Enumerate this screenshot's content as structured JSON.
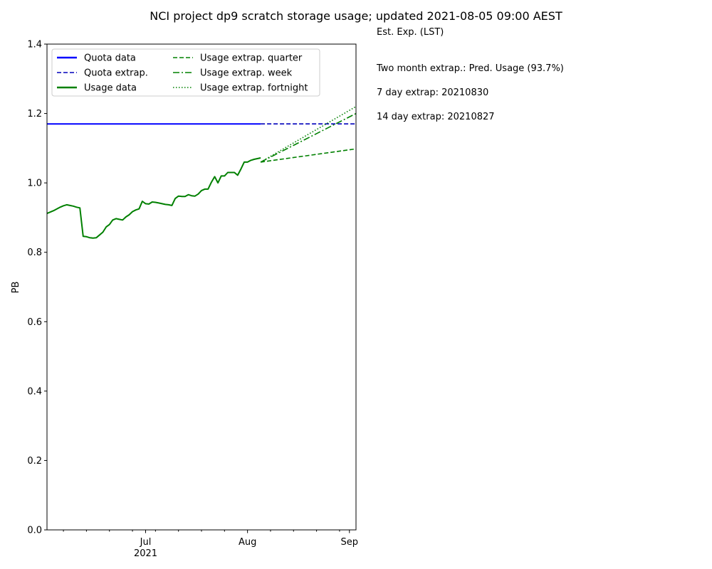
{
  "chart_data": {
    "type": "line",
    "title": "NCI project dp9 scratch storage usage; updated 2021-08-05 09:00 AEST",
    "xlabel": "",
    "ylabel": "PB",
    "ylim": [
      0,
      1.4
    ],
    "yticks": [
      0.0,
      0.2,
      0.4,
      0.6,
      0.8,
      1.0,
      1.2,
      1.4
    ],
    "ytick_labels": [
      "0.0",
      "0.2",
      "0.4",
      "0.6",
      "0.8",
      "1.0",
      "1.2",
      "1.4"
    ],
    "xlim": [
      "2021-06-01",
      "2021-09-03"
    ],
    "xticks": [
      {
        "date": "2021-07-01",
        "label": "Jul",
        "sublabel": "2021"
      },
      {
        "date": "2021-08-01",
        "label": "Aug",
        "sublabel": ""
      },
      {
        "date": "2021-09-01",
        "label": "Sep",
        "sublabel": ""
      }
    ],
    "minor_xticks": [
      "2021-06-06",
      "2021-06-13",
      "2021-06-20",
      "2021-06-27",
      "2021-07-04",
      "2021-07-11",
      "2021-07-18",
      "2021-07-25",
      "2021-08-08",
      "2021-08-15",
      "2021-08-22",
      "2021-08-29"
    ],
    "grid": false,
    "legend_position": "top-left",
    "series": [
      {
        "name": "Quota data",
        "color": "#0000ff",
        "style": "solid",
        "x": [
          "2021-06-01",
          "2021-06-26",
          "2021-06-27",
          "2021-08-05"
        ],
        "y": [
          1.17,
          1.17,
          1.17,
          1.17
        ]
      },
      {
        "name": "Quota extrap.",
        "color": "#0000bb",
        "style": "dashed",
        "x": [
          "2021-08-05",
          "2021-09-03"
        ],
        "y": [
          1.17,
          1.17
        ]
      },
      {
        "name": "Usage data",
        "color": "#008000",
        "style": "solid",
        "x": [
          "2021-06-01",
          "2021-06-03",
          "2021-06-05",
          "2021-06-06",
          "2021-06-07",
          "2021-06-08",
          "2021-06-09",
          "2021-06-10",
          "2021-06-11",
          "2021-06-12",
          "2021-06-13",
          "2021-06-14",
          "2021-06-15",
          "2021-06-16",
          "2021-06-17",
          "2021-06-18",
          "2021-06-19",
          "2021-06-20",
          "2021-06-21",
          "2021-06-22",
          "2021-06-23",
          "2021-06-24",
          "2021-06-25",
          "2021-06-26",
          "2021-06-27",
          "2021-06-28",
          "2021-06-29",
          "2021-06-30",
          "2021-07-01",
          "2021-07-02",
          "2021-07-03",
          "2021-07-04",
          "2021-07-05",
          "2021-07-06",
          "2021-07-07",
          "2021-07-08",
          "2021-07-09",
          "2021-07-10",
          "2021-07-11",
          "2021-07-12",
          "2021-07-13",
          "2021-07-14",
          "2021-07-15",
          "2021-07-16",
          "2021-07-17",
          "2021-07-18",
          "2021-07-19",
          "2021-07-20",
          "2021-07-21",
          "2021-07-22",
          "2021-07-23",
          "2021-07-24",
          "2021-07-25",
          "2021-07-26",
          "2021-07-27",
          "2021-07-28",
          "2021-07-29",
          "2021-07-30",
          "2021-07-31",
          "2021-08-01",
          "2021-08-02",
          "2021-08-03",
          "2021-08-04",
          "2021-08-05"
        ],
        "y": [
          0.912,
          0.92,
          0.93,
          0.934,
          0.937,
          0.935,
          0.933,
          0.93,
          0.928,
          0.846,
          0.845,
          0.842,
          0.841,
          0.842,
          0.85,
          0.858,
          0.873,
          0.88,
          0.893,
          0.897,
          0.895,
          0.893,
          0.902,
          0.908,
          0.917,
          0.922,
          0.925,
          0.947,
          0.94,
          0.939,
          0.945,
          0.944,
          0.942,
          0.94,
          0.938,
          0.937,
          0.935,
          0.955,
          0.962,
          0.961,
          0.961,
          0.966,
          0.963,
          0.962,
          0.968,
          0.978,
          0.982,
          0.982,
          1.002,
          1.018,
          1.0,
          1.02,
          1.02,
          1.03,
          1.03,
          1.03,
          1.022,
          1.04,
          1.06,
          1.06,
          1.065,
          1.068,
          1.07,
          1.072
        ]
      },
      {
        "name": "Usage extrap. quarter",
        "color": "#008000",
        "style": "dashed",
        "x": [
          "2021-08-05",
          "2021-09-03"
        ],
        "y": [
          1.06,
          1.098
        ]
      },
      {
        "name": "Usage extrap. week",
        "color": "#008000",
        "style": "dashdot",
        "x": [
          "2021-08-05",
          "2021-09-03"
        ],
        "y": [
          1.06,
          1.2
        ]
      },
      {
        "name": "Usage extrap. fortnight",
        "color": "#008000",
        "style": "dotted",
        "x": [
          "2021-08-05",
          "2021-09-03"
        ],
        "y": [
          1.06,
          1.22
        ]
      }
    ],
    "annotations": [
      "Est. Exp. (LST)",
      "Two month extrap.: Pred. Usage (93.7%)",
      "7 day extrap: 20210830",
      "14 day extrap: 20210827"
    ]
  }
}
